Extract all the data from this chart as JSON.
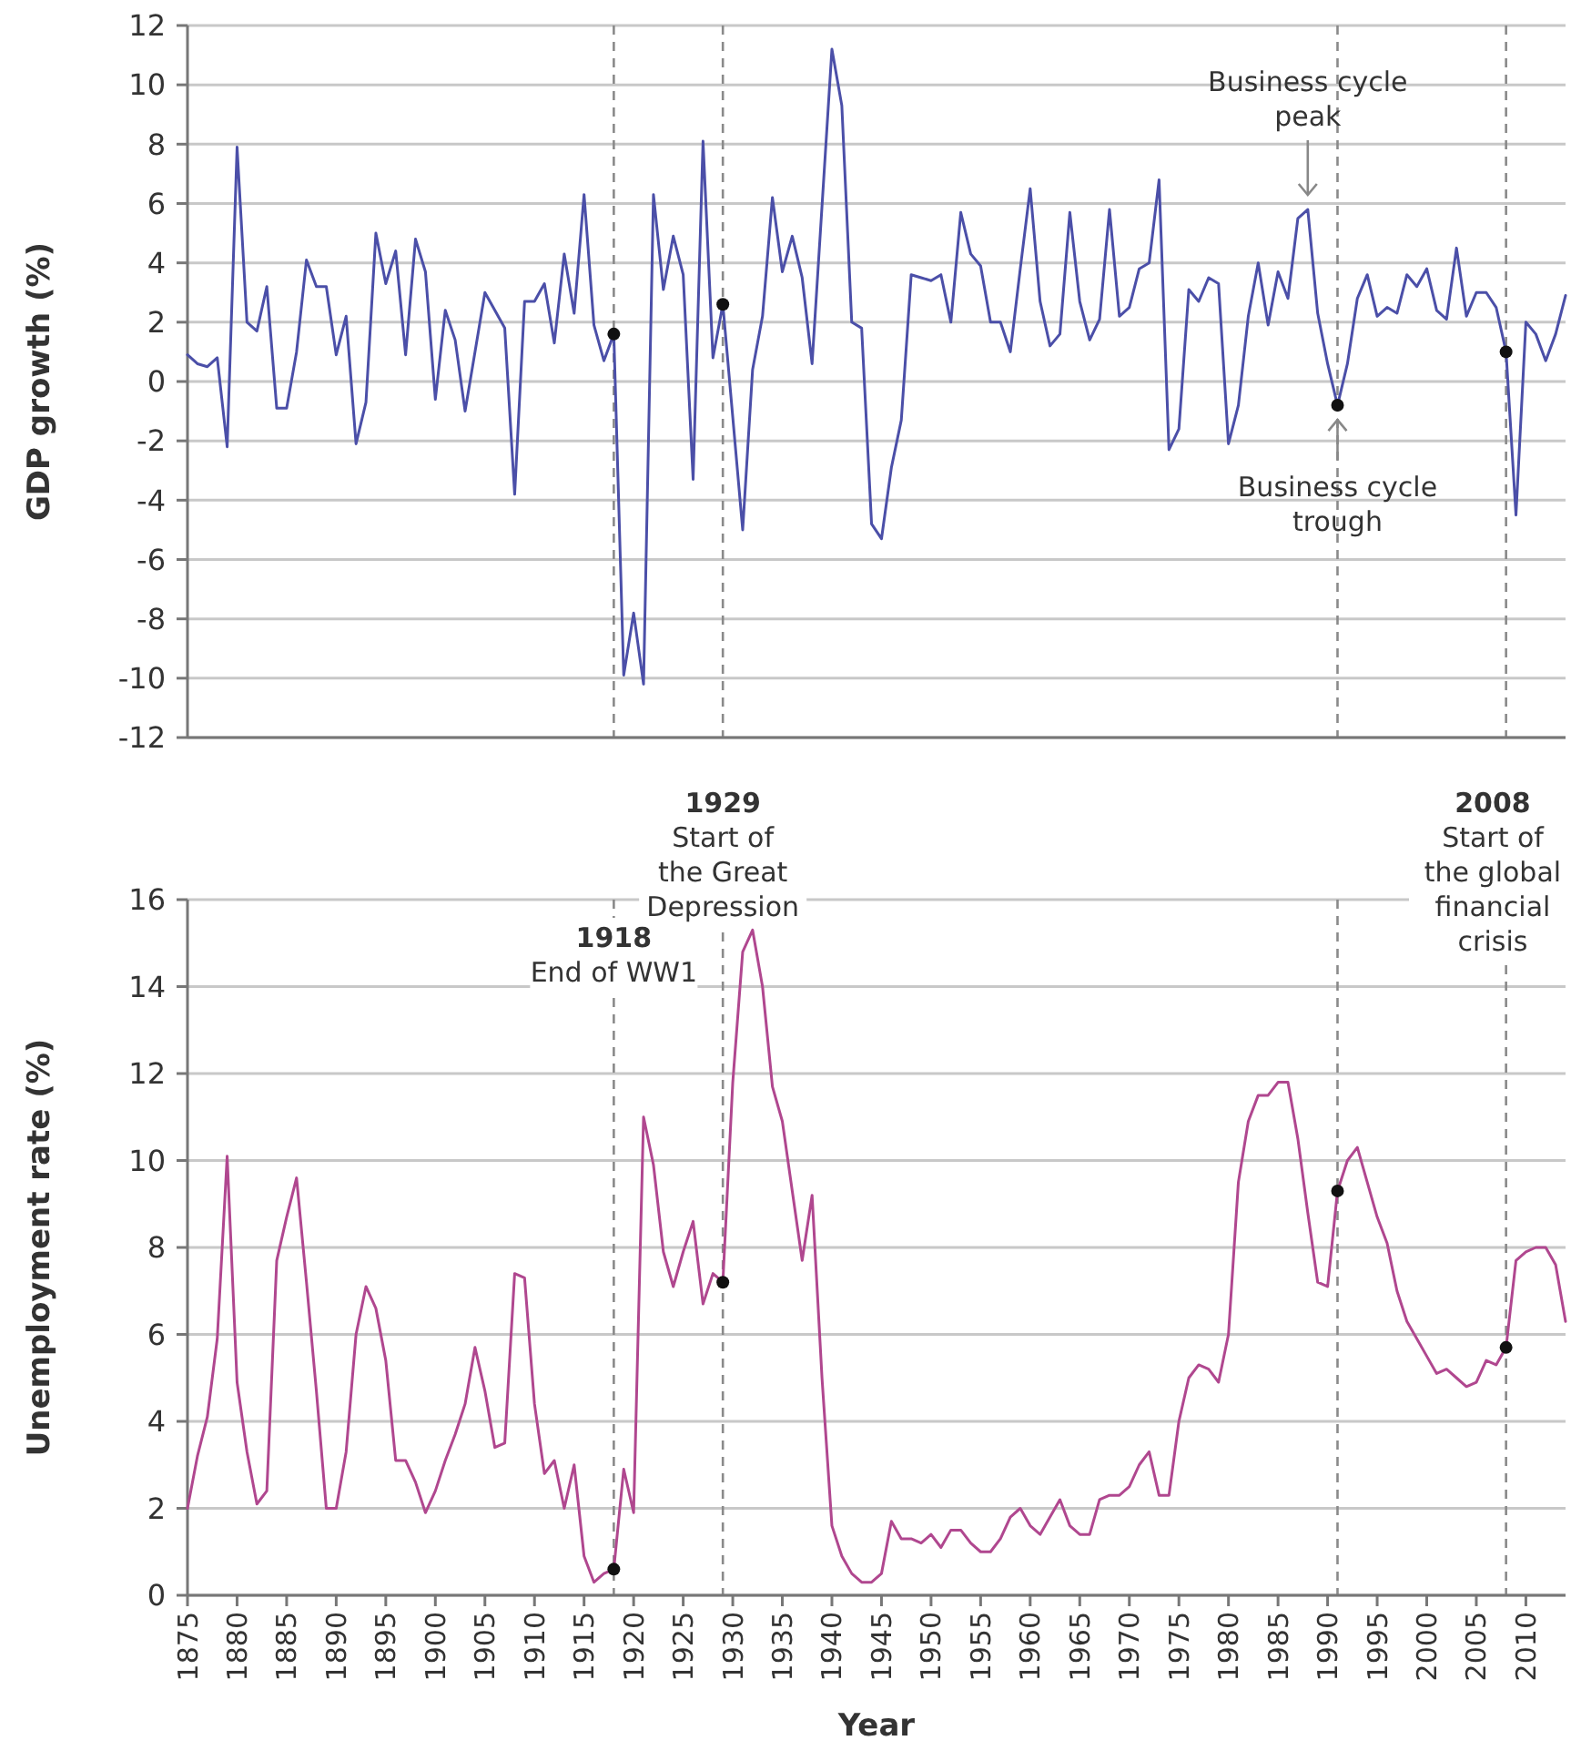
{
  "chart_data": [
    {
      "type": "line",
      "ylabel": "GDP growth (%)",
      "xlim": [
        1875,
        2014
      ],
      "ylim": [
        -12,
        12
      ],
      "yticks": [
        -12,
        -10,
        -8,
        -6,
        -4,
        -2,
        0,
        2,
        4,
        6,
        8,
        10,
        12
      ],
      "grid": "y",
      "tick_labels": "y",
      "series": [
        {
          "color": "#4b4fa8",
          "x": [
            1875,
            1876,
            1877,
            1878,
            1879,
            1880,
            1881,
            1882,
            1883,
            1884,
            1885,
            1886,
            1887,
            1888,
            1889,
            1890,
            1891,
            1892,
            1893,
            1894,
            1895,
            1896,
            1897,
            1898,
            1899,
            1900,
            1901,
            1902,
            1903,
            1904,
            1905,
            1906,
            1907,
            1908,
            1909,
            1910,
            1911,
            1912,
            1913,
            1914,
            1915,
            1916,
            1917,
            1918,
            1919,
            1920,
            1921,
            1922,
            1923,
            1924,
            1925,
            1926,
            1927,
            1928,
            1929,
            1930,
            1931,
            1932,
            1933,
            1934,
            1935,
            1936,
            1937,
            1938,
            1939,
            1940,
            1941,
            1942,
            1943,
            1944,
            1945,
            1946,
            1947,
            1948,
            1949,
            1950,
            1951,
            1952,
            1953,
            1954,
            1955,
            1956,
            1957,
            1958,
            1959,
            1960,
            1961,
            1962,
            1963,
            1964,
            1965,
            1966,
            1967,
            1968,
            1969,
            1970,
            1971,
            1972,
            1973,
            1974,
            1975,
            1976,
            1977,
            1978,
            1979,
            1980,
            1981,
            1982,
            1983,
            1984,
            1985,
            1986,
            1987,
            1988,
            1989,
            1990,
            1991,
            1992,
            1993,
            1994,
            1995,
            1996,
            1997,
            1998,
            1999,
            2000,
            2001,
            2002,
            2003,
            2004,
            2005,
            2006,
            2007,
            2008,
            2009,
            2010,
            2011,
            2012,
            2013,
            2014
          ],
          "values": [
            0.9,
            0.6,
            0.5,
            0.8,
            -2.2,
            7.9,
            2.0,
            1.7,
            3.2,
            -0.9,
            -0.9,
            1.0,
            4.1,
            3.2,
            3.2,
            0.9,
            2.2,
            -2.1,
            -0.7,
            5.0,
            3.3,
            4.4,
            0.9,
            4.8,
            3.7,
            -0.6,
            2.4,
            1.4,
            -1.0,
            1.0,
            3.0,
            2.4,
            1.8,
            -3.8,
            2.7,
            2.7,
            3.3,
            1.3,
            4.3,
            2.3,
            6.3,
            1.9,
            0.7,
            1.6,
            -9.9,
            -7.8,
            -10.2,
            6.3,
            3.1,
            4.9,
            3.6,
            -3.3,
            8.1,
            0.8,
            2.6,
            -1.2,
            -5.0,
            0.4,
            2.2,
            6.2,
            3.7,
            4.9,
            3.5,
            0.6,
            5.9,
            11.2,
            9.3,
            2.0,
            1.8,
            -4.8,
            -5.3,
            -2.9,
            -1.3,
            3.6,
            3.5,
            3.4,
            3.6,
            2.0,
            5.7,
            4.3,
            3.9,
            2.0,
            2.0,
            1.0,
            3.8,
            6.5,
            2.7,
            1.2,
            1.6,
            5.7,
            2.7,
            1.4,
            2.1,
            5.8,
            2.2,
            2.5,
            3.8,
            4.0,
            6.8,
            -2.3,
            -1.6,
            3.1,
            2.7,
            3.5,
            3.3,
            -2.1,
            -0.8,
            2.2,
            4.0,
            1.9,
            3.7,
            2.8,
            5.5,
            5.8,
            2.3,
            0.6,
            -0.8,
            0.6,
            2.8,
            3.6,
            2.2,
            2.5,
            2.3,
            3.6,
            3.2,
            3.8,
            2.4,
            2.1,
            4.5,
            2.2,
            3.0,
            3.0,
            2.5,
            1.0,
            -4.5,
            2.0,
            1.6,
            0.7,
            1.6,
            2.9
          ]
        },
        {
          "type": "scatter",
          "color": "#111111",
          "marker": "circle",
          "x": [
            1918,
            1929,
            1991,
            2008
          ],
          "values": [
            1.6,
            2.6,
            -0.8,
            1.0
          ]
        }
      ],
      "ref_lines": [
        {
          "axis": "x",
          "value": 1918,
          "color": "#8a8a8a",
          "line_style": "dashed"
        },
        {
          "axis": "x",
          "value": 1929,
          "color": "#8a8a8a",
          "line_style": "dashed"
        },
        {
          "axis": "x",
          "value": 1991,
          "color": "#8a8a8a",
          "line_style": "dashed"
        },
        {
          "axis": "x",
          "value": 2008,
          "color": "#8a8a8a",
          "line_style": "dashed"
        }
      ],
      "annotations": [
        {
          "text": "Business cycle\npeak",
          "x": 1988,
          "y": 5.8
        },
        {
          "text": "Business cycle\ntrough",
          "x": 1991,
          "y": -0.8
        }
      ]
    },
    {
      "type": "line",
      "ylabel": "Unemployment rate (%)",
      "xlabel": "Year",
      "xlim": [
        1875,
        2014
      ],
      "xticks": [
        1875,
        1880,
        1885,
        1890,
        1895,
        1900,
        1905,
        1910,
        1915,
        1920,
        1925,
        1930,
        1935,
        1940,
        1945,
        1950,
        1955,
        1960,
        1965,
        1970,
        1975,
        1980,
        1985,
        1990,
        1995,
        2000,
        2005,
        2010
      ],
      "ylim": [
        0,
        16
      ],
      "yticks": [
        0,
        2,
        4,
        6,
        8,
        10,
        12,
        14,
        16
      ],
      "grid": "y",
      "series": [
        {
          "color": "#b0478f",
          "x": [
            1875,
            1876,
            1877,
            1878,
            1879,
            1880,
            1881,
            1882,
            1883,
            1884,
            1885,
            1886,
            1887,
            1888,
            1889,
            1890,
            1891,
            1892,
            1893,
            1894,
            1895,
            1896,
            1897,
            1898,
            1899,
            1900,
            1901,
            1902,
            1903,
            1904,
            1905,
            1906,
            1907,
            1908,
            1909,
            1910,
            1911,
            1912,
            1913,
            1914,
            1915,
            1916,
            1917,
            1918,
            1919,
            1920,
            1921,
            1922,
            1923,
            1924,
            1925,
            1926,
            1927,
            1928,
            1929,
            1930,
            1931,
            1932,
            1933,
            1934,
            1935,
            1936,
            1937,
            1938,
            1939,
            1940,
            1941,
            1942,
            1943,
            1944,
            1945,
            1946,
            1947,
            1948,
            1949,
            1950,
            1951,
            1952,
            1953,
            1954,
            1955,
            1956,
            1957,
            1958,
            1959,
            1960,
            1961,
            1962,
            1963,
            1964,
            1965,
            1966,
            1967,
            1968,
            1969,
            1970,
            1971,
            1972,
            1973,
            1974,
            1975,
            1976,
            1977,
            1978,
            1979,
            1980,
            1981,
            1982,
            1983,
            1984,
            1985,
            1986,
            1987,
            1988,
            1989,
            1990,
            1991,
            1992,
            1993,
            1994,
            1995,
            1996,
            1997,
            1998,
            1999,
            2000,
            2001,
            2002,
            2003,
            2004,
            2005,
            2006,
            2007,
            2008,
            2009,
            2010,
            2011,
            2012,
            2013,
            2014
          ],
          "values": [
            2.0,
            3.2,
            4.1,
            5.9,
            10.1,
            4.9,
            3.3,
            2.1,
            2.4,
            7.7,
            8.7,
            9.6,
            7.2,
            4.7,
            2.0,
            2.0,
            3.3,
            6.0,
            7.1,
            6.6,
            5.4,
            3.1,
            3.1,
            2.6,
            1.9,
            2.4,
            3.1,
            3.7,
            4.4,
            5.7,
            4.7,
            3.4,
            3.5,
            7.4,
            7.3,
            4.4,
            2.8,
            3.1,
            2.0,
            3.0,
            0.9,
            0.3,
            0.5,
            0.6,
            2.9,
            1.9,
            11.0,
            9.9,
            7.9,
            7.1,
            7.9,
            8.6,
            6.7,
            7.4,
            7.2,
            11.8,
            14.8,
            15.3,
            14.0,
            11.7,
            10.9,
            9.3,
            7.7,
            9.2,
            5.0,
            1.6,
            0.9,
            0.5,
            0.3,
            0.3,
            0.5,
            1.7,
            1.3,
            1.3,
            1.2,
            1.4,
            1.1,
            1.5,
            1.5,
            1.2,
            1.0,
            1.0,
            1.3,
            1.8,
            2.0,
            1.6,
            1.4,
            1.8,
            2.2,
            1.6,
            1.4,
            1.4,
            2.2,
            2.3,
            2.3,
            2.5,
            3.0,
            3.3,
            2.3,
            2.3,
            4.0,
            5.0,
            5.3,
            5.2,
            4.9,
            6.0,
            9.5,
            10.9,
            11.5,
            11.5,
            11.8,
            11.8,
            10.5,
            8.8,
            7.2,
            7.1,
            9.3,
            10.0,
            10.3,
            9.5,
            8.7,
            8.1,
            7.0,
            6.3,
            5.9,
            5.5,
            5.1,
            5.2,
            5.0,
            4.8,
            4.9,
            5.4,
            5.3,
            5.7,
            7.7,
            7.9,
            8.0,
            8.0,
            7.6,
            6.3
          ]
        },
        {
          "type": "scatter",
          "color": "#111111",
          "marker": "circle",
          "x": [
            1918,
            1929,
            1991,
            2008
          ],
          "values": [
            0.6,
            7.2,
            9.3,
            5.7
          ]
        }
      ],
      "ref_lines": [
        {
          "axis": "x",
          "value": 1918,
          "label": "1918\nEnd of WW1",
          "color": "#8a8a8a",
          "line_style": "dashed"
        },
        {
          "axis": "x",
          "value": 1929,
          "label": "1929\nStart of\nthe Great\nDepression",
          "color": "#8a8a8a",
          "line_style": "dashed"
        },
        {
          "axis": "x",
          "value": 1991,
          "color": "#8a8a8a",
          "line_style": "dashed"
        },
        {
          "axis": "x",
          "value": 2008,
          "label": "2008\nStart of\nthe global\nfinancial\ncrisis",
          "color": "#8a8a8a",
          "line_style": "dashed"
        }
      ]
    }
  ]
}
